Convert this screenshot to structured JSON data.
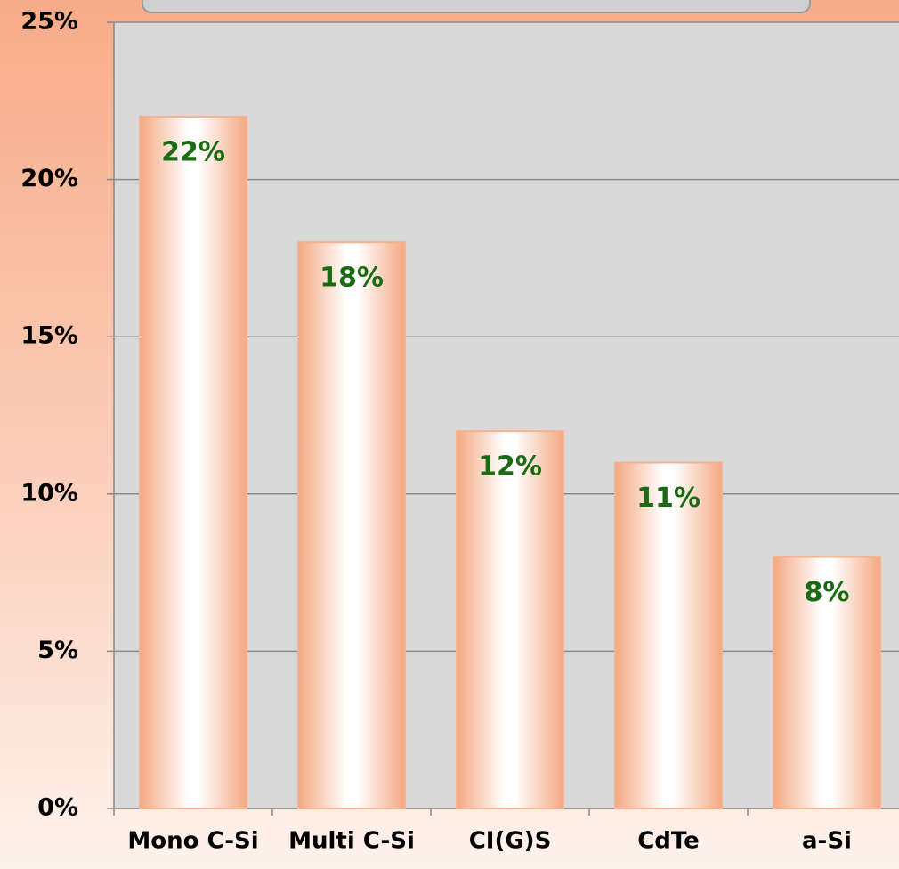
{
  "chart_data": {
    "type": "bar",
    "categories": [
      "Mono C-Si",
      "Multi C-Si",
      "CI(G)S",
      "CdTe",
      "a-Si"
    ],
    "values": [
      22,
      18,
      12,
      11,
      8
    ],
    "value_labels": [
      "22%",
      "18%",
      "12%",
      "11%",
      "8%"
    ],
    "color": "#f6b18f",
    "ylim": [
      0,
      25
    ],
    "yticks": [
      {
        "value": 0,
        "label": "0%"
      },
      {
        "value": 5,
        "label": "5%"
      },
      {
        "value": 10,
        "label": "10%"
      },
      {
        "value": 15,
        "label": "15%"
      },
      {
        "value": 20,
        "label": "20%"
      },
      {
        "value": 25,
        "label": "25%"
      }
    ],
    "grid": true
  }
}
